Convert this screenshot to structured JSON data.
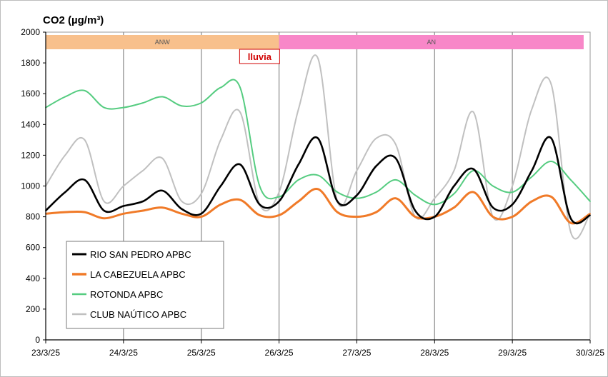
{
  "chart_data": {
    "type": "line",
    "title": "CO2 (µg/m³)",
    "xlabel": "",
    "ylabel": "",
    "ylim": [
      0,
      2000
    ],
    "yticks": [
      0,
      200,
      400,
      600,
      800,
      1000,
      1200,
      1400,
      1600,
      1800,
      2000
    ],
    "xlim": [
      "2025-03-23",
      "2025-03-30"
    ],
    "xtick_labels": [
      "23/3/25",
      "24/3/25",
      "25/3/25",
      "26/3/25",
      "27/3/25",
      "28/3/25",
      "29/3/25",
      "30/3/25"
    ],
    "grid": "vertical",
    "legend_position": "bottom-left",
    "bands": [
      {
        "label": "ANW",
        "start": "2025-03-23T00:00",
        "end": "2025-03-26T00:00",
        "color": "#f8c08c"
      },
      {
        "label": "AN",
        "start": "2025-03-26T00:00",
        "end": "2025-03-29T22:00",
        "color": "#f887c8"
      }
    ],
    "annotation": {
      "label": "lluvia",
      "at": "2025-03-25T18:00",
      "color": "#d00000"
    },
    "x": [
      "2025-03-23T00:00",
      "2025-03-23T06:00",
      "2025-03-23T12:00",
      "2025-03-23T18:00",
      "2025-03-24T00:00",
      "2025-03-24T06:00",
      "2025-03-24T12:00",
      "2025-03-24T18:00",
      "2025-03-25T00:00",
      "2025-03-25T06:00",
      "2025-03-25T12:00",
      "2025-03-25T18:00",
      "2025-03-26T00:00",
      "2025-03-26T06:00",
      "2025-03-26T12:00",
      "2025-03-26T18:00",
      "2025-03-27T00:00",
      "2025-03-27T06:00",
      "2025-03-27T12:00",
      "2025-03-27T18:00",
      "2025-03-28T00:00",
      "2025-03-28T06:00",
      "2025-03-28T12:00",
      "2025-03-28T18:00",
      "2025-03-29T00:00",
      "2025-03-29T06:00",
      "2025-03-29T12:00",
      "2025-03-29T18:00",
      "2025-03-30T00:00"
    ],
    "series": [
      {
        "name": "RIO SAN PEDRO APBC",
        "color": "#000000",
        "width": 2.6,
        "values": [
          840,
          960,
          1040,
          840,
          870,
          900,
          970,
          850,
          820,
          1000,
          1140,
          880,
          900,
          1140,
          1310,
          900,
          940,
          1130,
          1180,
          840,
          800,
          1000,
          1110,
          860,
          880,
          1100,
          1310,
          790,
          810
        ]
      },
      {
        "name": "LA CABEZUELA  APBC",
        "color": "#f07a28",
        "width": 3,
        "values": [
          820,
          830,
          830,
          790,
          820,
          840,
          860,
          820,
          800,
          880,
          910,
          810,
          810,
          900,
          980,
          830,
          800,
          830,
          920,
          800,
          800,
          860,
          960,
          800,
          800,
          900,
          930,
          760,
          820
        ]
      },
      {
        "name": "ROTONDA  APBC",
        "color": "#55cc80",
        "width": 2,
        "values": [
          1510,
          1580,
          1620,
          1510,
          1510,
          1540,
          1580,
          1520,
          1540,
          1640,
          1640,
          1000,
          930,
          1040,
          1070,
          960,
          920,
          960,
          1040,
          940,
          880,
          950,
          1100,
          1000,
          960,
          1060,
          1160,
          1040,
          900
        ]
      },
      {
        "name": "CLUB NAÚTICO  APBC",
        "color": "#c0c0c0",
        "width": 2,
        "values": [
          1000,
          1200,
          1300,
          900,
          1000,
          1100,
          1180,
          900,
          950,
          1300,
          1480,
          880,
          960,
          1500,
          1830,
          900,
          1100,
          1310,
          1270,
          800,
          920,
          1100,
          1480,
          800,
          1000,
          1500,
          1660,
          700,
          820
        ]
      }
    ]
  }
}
